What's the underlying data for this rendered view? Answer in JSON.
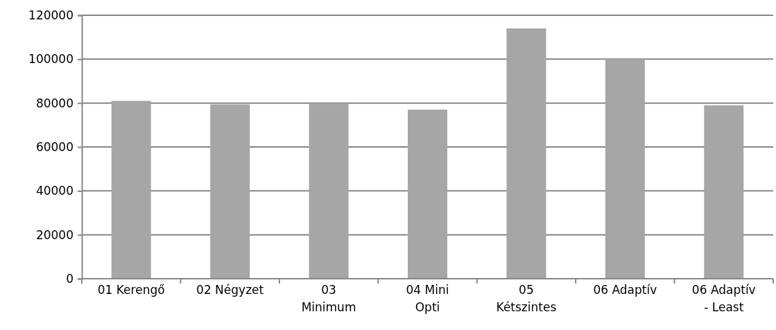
{
  "chart_data": {
    "type": "bar",
    "categories": [
      "01 Kerengő",
      "02 Négyzet",
      "03 Minimum",
      "04 Mini Opti",
      "05 Kétszintes",
      "06 Adaptív",
      "06 Adaptív - Least"
    ],
    "values": [
      81000,
      79400,
      79700,
      77000,
      114000,
      100000,
      79000
    ],
    "color": "#a6a6a6",
    "ylim": [
      0,
      120000
    ],
    "yticks": [
      0,
      20000,
      40000,
      60000,
      80000,
      100000,
      120000
    ],
    "grid": "y"
  }
}
